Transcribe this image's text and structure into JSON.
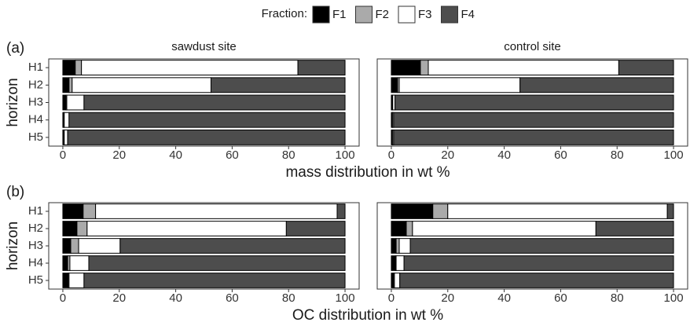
{
  "chart_data": [
    {
      "type": "bar",
      "orientation": "horizontal",
      "stacked": true,
      "tag": "(a)",
      "title": "sawdust site",
      "ylabel": "horizon",
      "xlabel": "mass distribution in wt %",
      "legend_title": "Fraction:",
      "categories": [
        "H1",
        "H2",
        "H3",
        "H4",
        "H5"
      ],
      "xlim": [
        -5,
        105
      ],
      "xticks": [
        0,
        20,
        40,
        60,
        80,
        100
      ],
      "series": [
        {
          "name": "F1",
          "color": "#000000",
          "values": [
            4.4,
            2.2,
            1.1,
            0.3,
            0.3
          ]
        },
        {
          "name": "F2",
          "color": "#aaaaaa",
          "values": [
            2.2,
            1.1,
            0.3,
            0.2,
            0.2
          ]
        },
        {
          "name": "F3",
          "color": "#ffffff",
          "values": [
            76.7,
            49.2,
            6.1,
            1.7,
            1.2
          ]
        },
        {
          "name": "F4",
          "color": "#4d4d4d",
          "values": [
            16.7,
            47.5,
            92.5,
            97.8,
            98.3
          ]
        }
      ]
    },
    {
      "type": "bar",
      "orientation": "horizontal",
      "stacked": true,
      "title": "control site",
      "categories": [
        "H1",
        "H2",
        "H3",
        "H4",
        "H5"
      ],
      "xlim": [
        -5,
        105
      ],
      "xticks": [
        0,
        20,
        40,
        60,
        80,
        100
      ],
      "series": [
        {
          "name": "F1",
          "color": "#000000",
          "values": [
            10.3,
            2.2,
            0.3,
            0.3,
            0.3
          ]
        },
        {
          "name": "F2",
          "color": "#aaaaaa",
          "values": [
            2.8,
            0.6,
            0.2,
            0.1,
            0.1
          ]
        },
        {
          "name": "F3",
          "color": "#ffffff",
          "values": [
            67.5,
            42.8,
            0.8,
            0.4,
            0.4
          ]
        },
        {
          "name": "F4",
          "color": "#4d4d4d",
          "values": [
            19.4,
            54.4,
            98.7,
            99.2,
            99.2
          ]
        }
      ]
    },
    {
      "type": "bar",
      "orientation": "horizontal",
      "stacked": true,
      "tag": "(b)",
      "ylabel": "horizon",
      "xlabel": "OC distribution in wt %",
      "categories": [
        "H1",
        "H2",
        "H3",
        "H4",
        "H5"
      ],
      "xlim": [
        -5,
        105
      ],
      "xticks": [
        0,
        20,
        40,
        60,
        80,
        100
      ],
      "series": [
        {
          "name": "F1",
          "color": "#000000",
          "values": [
            7.2,
            5.0,
            2.8,
            1.7,
            1.9
          ]
        },
        {
          "name": "F2",
          "color": "#aaaaaa",
          "values": [
            4.4,
            3.6,
            2.8,
            0.8,
            0.3
          ]
        },
        {
          "name": "F3",
          "color": "#ffffff",
          "values": [
            85.6,
            70.6,
            14.7,
            6.7,
            5.3
          ]
        },
        {
          "name": "F4",
          "color": "#4d4d4d",
          "values": [
            2.8,
            20.8,
            79.7,
            90.8,
            92.5
          ]
        }
      ]
    },
    {
      "type": "bar",
      "orientation": "horizontal",
      "stacked": true,
      "categories": [
        "H1",
        "H2",
        "H3",
        "H4",
        "H5"
      ],
      "xlim": [
        -5,
        105
      ],
      "xticks": [
        0,
        20,
        40,
        60,
        80,
        100
      ],
      "series": [
        {
          "name": "F1",
          "color": "#000000",
          "values": [
            14.7,
            5.3,
            1.7,
            1.4,
            0.8
          ]
        },
        {
          "name": "F2",
          "color": "#aaaaaa",
          "values": [
            5.3,
            2.2,
            1.1,
            0.3,
            0.3
          ]
        },
        {
          "name": "F3",
          "color": "#ffffff",
          "values": [
            77.8,
            65.0,
            3.9,
            2.8,
            1.9
          ]
        },
        {
          "name": "F4",
          "color": "#4d4d4d",
          "values": [
            2.2,
            27.5,
            93.3,
            95.5,
            97.0
          ]
        }
      ]
    }
  ]
}
